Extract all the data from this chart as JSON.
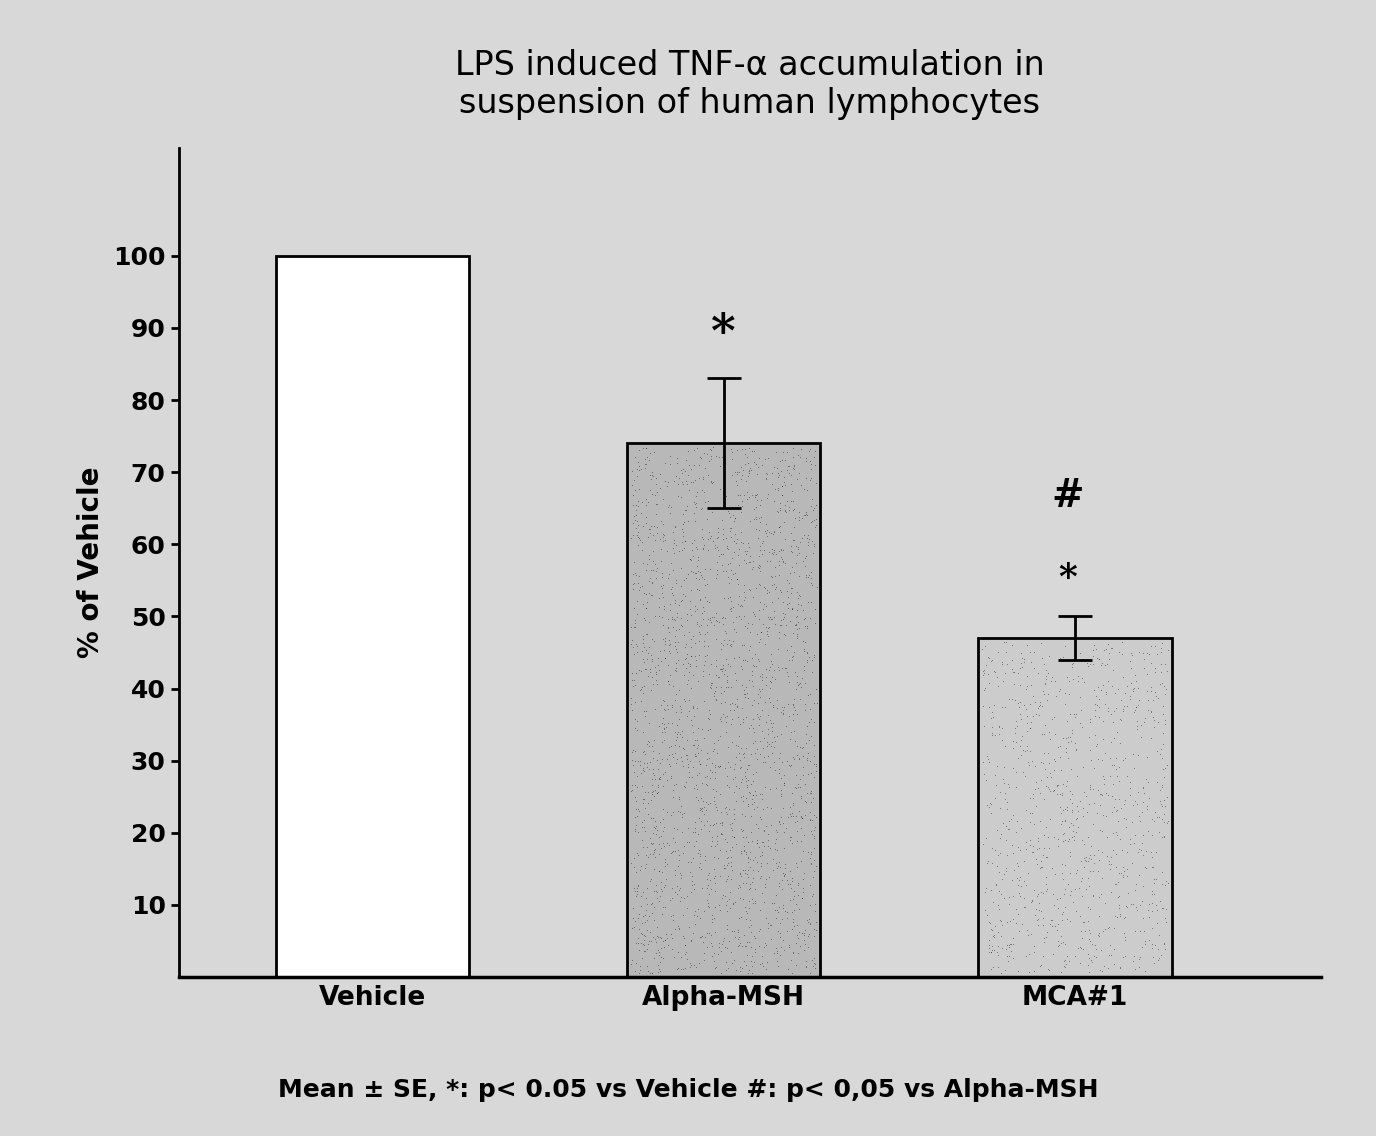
{
  "title": "LPS induced TNF-α accumulation in\nsuspension of human lymphocytes",
  "categories": [
    "Vehicle",
    "Alpha-MSH",
    "MCA#1"
  ],
  "values": [
    100,
    74,
    47
  ],
  "errors": [
    0,
    9,
    3
  ],
  "ylabel": "% of Vehicle",
  "yticks": [
    10,
    20,
    30,
    40,
    50,
    60,
    70,
    80,
    90,
    100
  ],
  "ylim": [
    0,
    115
  ],
  "bar_colors": [
    "#ffffff",
    "#aaaaaa",
    "#bbbbbb"
  ],
  "bar_edgecolors": [
    "#000000",
    "#000000",
    "#000000"
  ],
  "footnote": "Mean ± SE, *: p< 0.05 vs Vehicle #: p< 0,05 vs Alpha-MSH",
  "background_color": "#d8d8d8",
  "plot_bg_color": "#d8d8d8",
  "title_fontsize": 24,
  "axis_label_fontsize": 20,
  "tick_fontsize": 18,
  "footnote_fontsize": 18,
  "annotation_fontsize_large": 34,
  "annotation_fontsize_medium": 26,
  "bar_width": 0.55
}
